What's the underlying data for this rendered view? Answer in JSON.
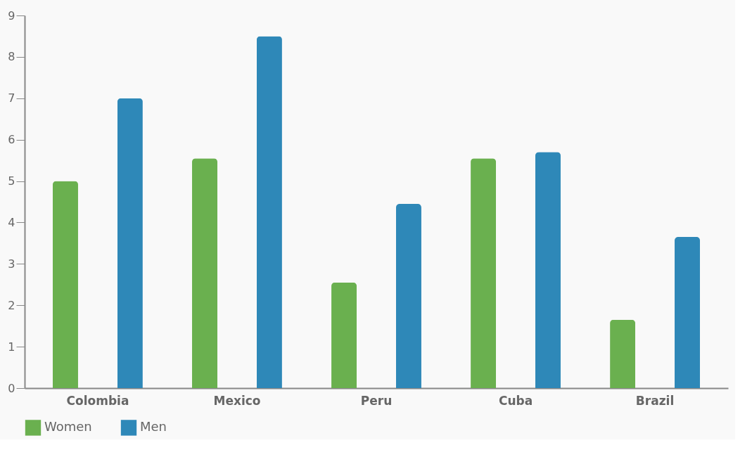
{
  "chart_data": {
    "type": "bar",
    "categories": [
      "Colombia",
      "Mexico",
      "Peru",
      "Cuba",
      "Brazil"
    ],
    "series": [
      {
        "name": "Women",
        "color": "#6ab04f",
        "values": [
          5.0,
          5.55,
          2.55,
          5.55,
          1.65
        ]
      },
      {
        "name": "Men",
        "color": "#2e88b8",
        "values": [
          7.0,
          8.5,
          4.45,
          5.7,
          3.65
        ]
      }
    ],
    "ylim": [
      0,
      9
    ],
    "yticks": [
      0,
      1,
      2,
      3,
      4,
      5,
      6,
      7,
      8,
      9
    ],
    "grid": false,
    "legend": "bottom"
  }
}
